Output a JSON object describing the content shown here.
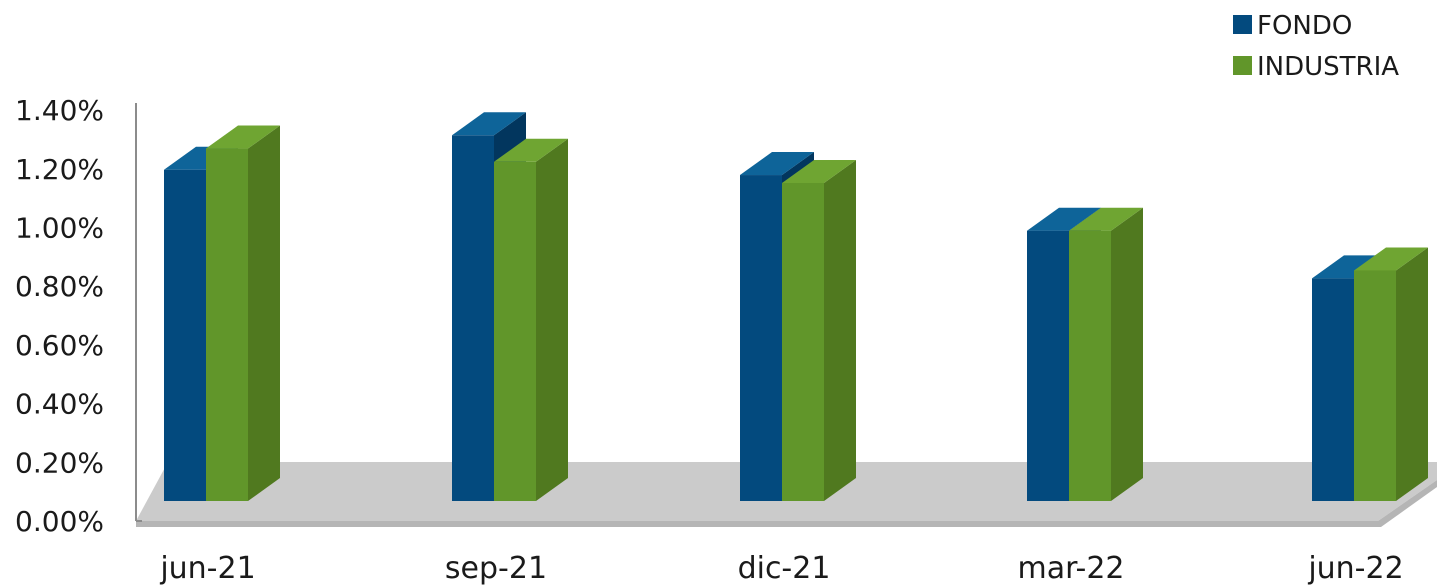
{
  "chart_data": {
    "type": "bar",
    "title": "",
    "xlabel": "",
    "ylabel": "",
    "categories": [
      "jun-21",
      "sep-21",
      "dic-21",
      "mar-22",
      "jun-22"
    ],
    "series": [
      {
        "name": "FONDO",
        "values": [
          1.25,
          1.38,
          1.23,
          1.02,
          0.84
        ],
        "color": "#034A7E",
        "top_color": "#0E6499",
        "side_color": "#02365E"
      },
      {
        "name": "INDUSTRIA",
        "values": [
          1.33,
          1.28,
          1.2,
          1.02,
          0.87
        ],
        "color": "#61962A",
        "top_color": "#6FA532",
        "side_color": "#50791F"
      }
    ],
    "ylim": [
      0,
      1.4
    ],
    "y_ticks": [
      "0.00%",
      "0.20%",
      "0.40%",
      "0.60%",
      "0.80%",
      "1.00%",
      "1.20%",
      "1.40%"
    ],
    "grid": false,
    "legend_position": "top-right",
    "floor_color": "#CBCBCB",
    "axis_color": "#8C8C8C"
  }
}
